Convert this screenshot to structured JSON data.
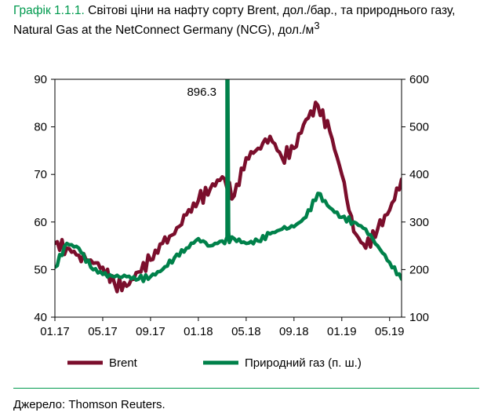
{
  "title": {
    "number": "Графік 1.1.1.",
    "text": " Світові ціни на нафту сорту Brent, дол./бар., та природнього газу, Natural Gas at the NetConnect Germany (NCG), дол./м",
    "superscript": "3"
  },
  "chart_data": {
    "type": "line",
    "x": [
      "01.17",
      "02.17",
      "03.17",
      "04.17",
      "05.17",
      "06.17",
      "07.17",
      "08.17",
      "09.17",
      "10.17",
      "11.17",
      "12.17",
      "01.18",
      "02.18",
      "03.18",
      "04.18",
      "05.18",
      "06.18",
      "07.18",
      "08.18",
      "09.18",
      "10.18",
      "11.18",
      "12.18",
      "01.19",
      "02.19",
      "03.19",
      "04.19",
      "05.19",
      "06.19"
    ],
    "x_tick_labels": [
      "01.17",
      "05.17",
      "09.17",
      "01.18",
      "05.18",
      "09.18",
      "01.19",
      "05.19"
    ],
    "y_left": {
      "ticks": [
        "90",
        "80",
        "70",
        "60",
        "50",
        "40"
      ],
      "min": 40,
      "max": 90
    },
    "y_right": {
      "ticks": [
        "600",
        "500",
        "400",
        "300",
        "200",
        "100"
      ],
      "min": 100,
      "max": 600
    },
    "annotation": "896.3",
    "series": [
      {
        "name": "Brent",
        "axis": "left",
        "color": "#7b0e2c",
        "values": [
          55.5,
          54.5,
          53.0,
          52.0,
          50.5,
          47.0,
          46.5,
          49.5,
          52.0,
          55.5,
          57.5,
          61.5,
          64.5,
          67.0,
          69.5,
          65.5,
          73.5,
          75.5,
          78.0,
          73.5,
          75.5,
          81.5,
          84.5,
          79.0,
          70.0,
          58.0,
          54.5,
          58.5,
          62.5,
          69.0
        ]
      },
      {
        "name": "Природний газ (п. ш.)",
        "axis": "right",
        "color": "#00814a",
        "values": [
          205,
          255,
          245,
          205,
          190,
          185,
          185,
          180,
          185,
          200,
          225,
          245,
          265,
          250,
          260,
          265,
          255,
          260,
          275,
          285,
          290,
          310,
          360,
          330,
          310,
          300,
          285,
          250,
          215,
          180
        ]
      }
    ],
    "gas_spike": {
      "date": "03.18",
      "value": 896.3
    }
  },
  "legend": [
    {
      "label": "Brent"
    },
    {
      "label": "Природний газ (п. ш.)"
    }
  ],
  "source": "Джерело: Thomson Reuters."
}
